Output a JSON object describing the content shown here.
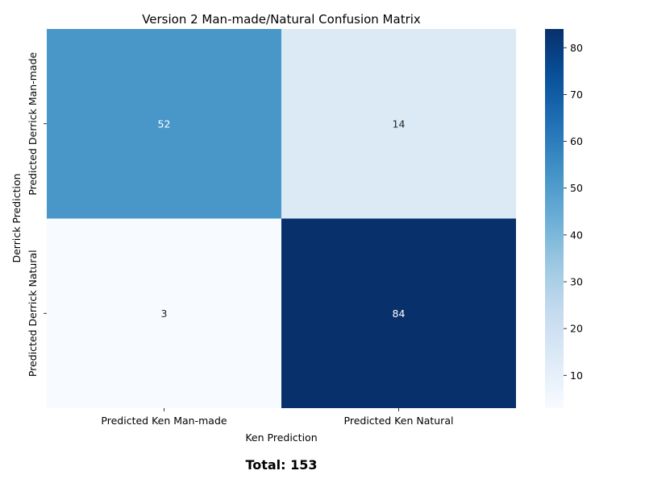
{
  "chart_data": {
    "type": "heatmap",
    "title": "Version 2 Man-made/Natural Confusion Matrix",
    "xlabel": "Ken Prediction",
    "ylabel": "Derrick Prediction",
    "x_categories": [
      "Predicted Ken Man-made",
      "Predicted Ken Natural"
    ],
    "y_categories": [
      "Predicted Derrick Man-made",
      "Predicted Derrick Natural"
    ],
    "values": [
      [
        52,
        14
      ],
      [
        3,
        84
      ]
    ],
    "colorbar": {
      "min": 3,
      "max": 84,
      "ticks": [
        10,
        20,
        30,
        40,
        50,
        60,
        70,
        80
      ],
      "colormap": "Blues"
    },
    "footer": "Total: 153"
  }
}
